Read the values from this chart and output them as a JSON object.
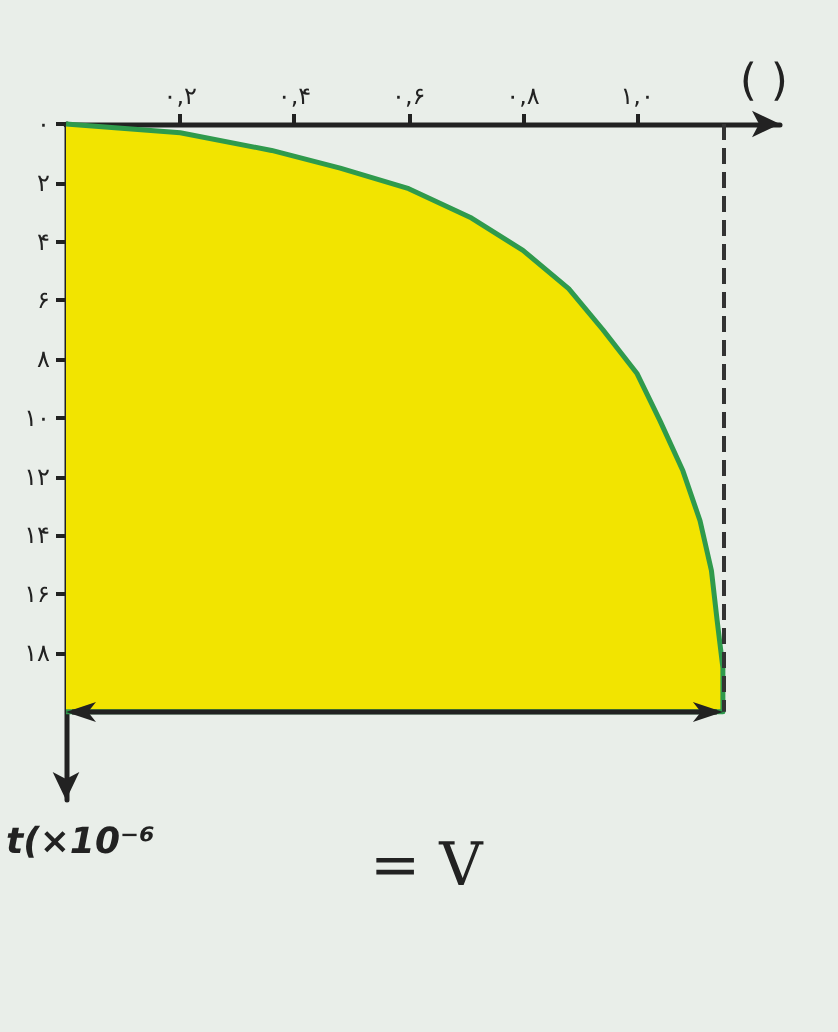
{
  "chart_data": {
    "type": "area",
    "xlabel": "( )",
    "ylabel": "t(×10⁻⁶",
    "annotations": [
      "= V"
    ],
    "x": [
      0,
      0.2,
      0.36,
      0.48,
      0.6,
      0.71,
      0.8,
      0.88,
      0.94,
      1.0,
      1.04,
      1.08,
      1.11,
      1.13,
      1.14,
      1.15,
      1.15,
      0
    ],
    "series": [
      {
        "color": "#f2e400",
        "values": [
          0,
          0.3,
          0.9,
          1.5,
          2.2,
          3.2,
          4.3,
          5.6,
          7.0,
          8.5,
          10.1,
          11.8,
          13.5,
          15.2,
          16.9,
          18.5,
          20,
          20
        ]
      }
    ],
    "xlim": [
      0,
      1.25
    ],
    "ylim": [
      23,
      0
    ],
    "xticks": [
      {
        "value": 0.2,
        "label": "۰,۲"
      },
      {
        "value": 0.4,
        "label": "۰,۴"
      },
      {
        "value": 0.6,
        "label": "۰,۶"
      },
      {
        "value": 0.8,
        "label": "۰,۸"
      },
      {
        "value": 1.0,
        "label": "۱,۰"
      }
    ],
    "yticks": [
      {
        "value": 0,
        "label": "۰"
      },
      {
        "value": 2,
        "label": "۲"
      },
      {
        "value": 4,
        "label": "۴"
      },
      {
        "value": 6,
        "label": "۶"
      },
      {
        "value": 8,
        "label": "۸"
      },
      {
        "value": 10,
        "label": "۱۰"
      },
      {
        "value": 12,
        "label": "۱۲"
      },
      {
        "value": 14,
        "label": "۱۴"
      },
      {
        "value": 16,
        "label": "۱۶"
      },
      {
        "value": 18,
        "label": "۱۸"
      }
    ],
    "ref_lines": [
      {
        "axis": "x",
        "value": 1.15,
        "line_style": "dashed",
        "color": "#333333"
      }
    ],
    "grid": false
  }
}
